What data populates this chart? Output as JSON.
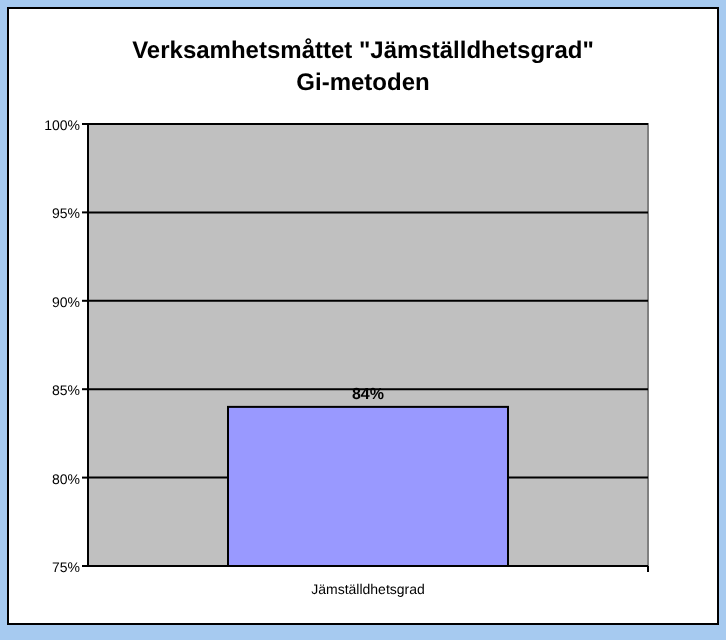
{
  "chart_data": {
    "type": "bar",
    "title": "Verksamhetsmåttet \"Jämställdhetsgrad\"",
    "subtitle": "Gi-metoden",
    "categories": [
      "Jämställdhetsgrad"
    ],
    "values": [
      84
    ],
    "color": "#9999ff",
    "value_labels": [
      "84%"
    ],
    "ylim": [
      75,
      100
    ],
    "yticks": [
      {
        "value": 75,
        "label": "75%"
      },
      {
        "value": 80,
        "label": "80%"
      },
      {
        "value": 85,
        "label": "85%"
      },
      {
        "value": 90,
        "label": "90%"
      },
      {
        "value": 95,
        "label": "95%"
      },
      {
        "value": 100,
        "label": "100%"
      }
    ],
    "grid": "y"
  }
}
